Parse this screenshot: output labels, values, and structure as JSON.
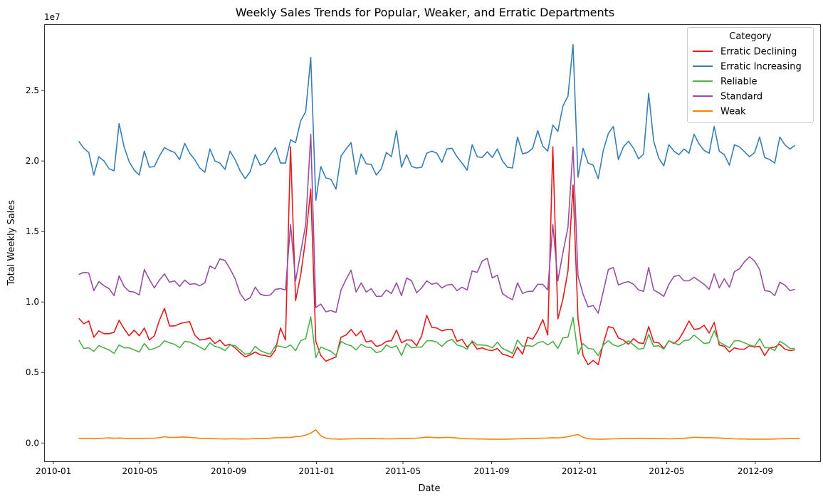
{
  "chart_data": {
    "type": "line",
    "title": "Weekly Sales Trends for Popular, Weaker, and Erratic Departments",
    "xlabel": "Date",
    "ylabel": "Total Weekly Sales",
    "y_offset_text": "1e7",
    "xlim": [
      "2009-12-19",
      "2012-11-30"
    ],
    "ylim": [
      -1300000,
      29700000
    ],
    "x_ticks": [
      {
        "date": "2010-01-01",
        "label": "2010-01"
      },
      {
        "date": "2010-05-01",
        "label": "2010-05"
      },
      {
        "date": "2010-09-01",
        "label": "2010-09"
      },
      {
        "date": "2011-01-01",
        "label": "2011-01"
      },
      {
        "date": "2011-05-01",
        "label": "2011-05"
      },
      {
        "date": "2011-09-01",
        "label": "2011-09"
      },
      {
        "date": "2012-01-01",
        "label": "2012-01"
      },
      {
        "date": "2012-05-01",
        "label": "2012-05"
      },
      {
        "date": "2012-09-01",
        "label": "2012-09"
      }
    ],
    "y_ticks": [
      {
        "value": 0,
        "label": "0.0"
      },
      {
        "value": 5000000,
        "label": "0.5"
      },
      {
        "value": 10000000,
        "label": "1.0"
      },
      {
        "value": 15000000,
        "label": "1.5"
      },
      {
        "value": 20000000,
        "label": "2.0"
      },
      {
        "value": 25000000,
        "label": "2.5"
      }
    ],
    "grid": false,
    "legend": {
      "title": "Category",
      "placement": "top-right"
    },
    "x_start": "2010-02-05",
    "x_step_days": 7,
    "series": [
      {
        "name": "Erratic Declining",
        "color": "#e41a1c",
        "values": [
          8.85,
          8.45,
          8.65,
          7.5,
          7.95,
          7.75,
          7.75,
          7.85,
          8.7,
          8.1,
          7.6,
          8.0,
          7.6,
          8.15,
          7.3,
          7.6,
          8.7,
          9.55,
          8.3,
          8.3,
          8.45,
          8.55,
          8.6,
          7.65,
          7.3,
          7.35,
          7.45,
          7.05,
          7.3,
          6.9,
          7.0,
          6.75,
          6.4,
          6.1,
          6.25,
          6.45,
          6.25,
          6.2,
          6.1,
          6.6,
          8.15,
          7.3,
          21.0,
          10.1,
          11.9,
          14.5,
          18.0,
          7.2,
          6.2,
          5.8,
          5.95,
          6.1,
          7.5,
          7.65,
          8.05,
          7.6,
          7.95,
          7.15,
          7.25,
          6.85,
          6.95,
          7.2,
          7.25,
          8.0,
          7.1,
          7.3,
          7.3,
          6.9,
          7.6,
          9.05,
          8.2,
          8.15,
          7.95,
          8.05,
          8.05,
          7.2,
          7.35,
          6.8,
          7.15,
          6.65,
          6.75,
          6.6,
          6.55,
          6.7,
          6.3,
          6.2,
          6.05,
          6.8,
          6.3,
          7.5,
          7.35,
          7.95,
          8.75,
          7.65,
          21.0,
          8.8,
          10.2,
          12.2,
          18.3,
          8.8,
          6.2,
          5.55,
          5.85,
          5.55,
          7.05,
          8.25,
          8.15,
          7.45,
          7.3,
          7.0,
          7.4,
          7.1,
          7.05,
          8.25,
          7.15,
          7.1,
          6.7,
          7.25,
          7.05,
          7.35,
          7.95,
          8.65,
          8.05,
          8.1,
          8.35,
          7.8,
          8.55,
          6.95,
          6.85,
          6.45,
          6.75,
          6.65,
          6.65,
          6.9,
          6.8,
          6.85,
          6.2,
          6.75,
          6.8,
          7.0,
          6.65,
          6.55,
          6.6
        ]
      },
      {
        "name": "Erratic Increasing",
        "color": "#377eb8",
        "values": [
          21.4,
          20.9,
          20.6,
          19.0,
          20.3,
          20.0,
          19.45,
          19.3,
          22.65,
          21.0,
          19.95,
          19.35,
          19.0,
          20.7,
          19.55,
          19.6,
          20.35,
          20.95,
          20.75,
          20.6,
          20.1,
          21.25,
          20.55,
          20.1,
          19.5,
          19.2,
          20.85,
          20.0,
          19.85,
          19.4,
          20.7,
          20.1,
          19.3,
          18.75,
          19.25,
          20.45,
          19.7,
          19.85,
          20.45,
          20.95,
          19.85,
          19.85,
          21.5,
          21.3,
          22.85,
          23.5,
          27.35,
          17.2,
          19.6,
          18.8,
          18.7,
          18.0,
          20.35,
          20.85,
          21.3,
          19.05,
          20.5,
          19.8,
          19.75,
          19.0,
          19.45,
          20.6,
          20.3,
          22.15,
          19.55,
          20.45,
          19.6,
          19.5,
          19.55,
          20.55,
          20.7,
          20.55,
          19.9,
          20.85,
          20.9,
          20.3,
          19.85,
          19.35,
          21.15,
          20.3,
          20.25,
          20.65,
          20.25,
          20.85,
          20.0,
          19.55,
          19.5,
          21.7,
          20.5,
          20.6,
          20.9,
          22.15,
          21.05,
          20.7,
          22.55,
          22.1,
          23.9,
          24.6,
          28.25,
          18.85,
          20.9,
          19.85,
          19.7,
          18.75,
          20.75,
          21.95,
          22.45,
          20.1,
          21.0,
          21.4,
          20.9,
          20.15,
          20.5,
          24.8,
          21.4,
          20.2,
          19.65,
          21.15,
          20.7,
          20.45,
          20.85,
          20.55,
          21.9,
          21.2,
          20.75,
          20.55,
          22.45,
          20.7,
          20.45,
          19.7,
          21.15,
          21.0,
          20.65,
          20.3,
          20.6,
          21.7,
          20.25,
          20.1,
          19.85,
          21.7,
          21.15,
          20.85,
          21.1
        ]
      },
      {
        "name": "Reliable",
        "color": "#4daf4a",
        "values": [
          7.3,
          6.7,
          6.75,
          6.5,
          6.9,
          6.75,
          6.6,
          6.35,
          6.95,
          6.75,
          6.75,
          6.6,
          6.45,
          7.05,
          6.6,
          6.7,
          6.85,
          7.25,
          7.1,
          7.0,
          6.75,
          7.2,
          7.15,
          7.0,
          6.8,
          6.6,
          7.1,
          6.85,
          6.75,
          6.55,
          6.95,
          6.9,
          6.6,
          6.3,
          6.35,
          6.85,
          6.55,
          6.4,
          6.3,
          6.9,
          6.85,
          6.75,
          6.95,
          6.55,
          7.25,
          7.4,
          8.95,
          6.05,
          6.8,
          6.65,
          6.5,
          6.2,
          7.2,
          7.0,
          6.9,
          6.6,
          7.0,
          6.8,
          6.75,
          6.4,
          6.5,
          6.95,
          6.75,
          6.9,
          6.2,
          7.05,
          6.75,
          6.8,
          6.8,
          7.25,
          7.25,
          7.15,
          6.85,
          7.2,
          7.35,
          6.95,
          6.85,
          6.65,
          7.25,
          6.95,
          6.95,
          6.9,
          6.75,
          7.15,
          6.7,
          6.55,
          6.35,
          7.3,
          6.85,
          6.9,
          6.85,
          7.1,
          7.2,
          6.95,
          7.2,
          6.7,
          7.45,
          7.5,
          8.9,
          6.3,
          7.05,
          6.7,
          6.65,
          6.2,
          6.95,
          7.25,
          6.95,
          6.85,
          7.0,
          7.25,
          6.95,
          6.65,
          6.7,
          7.7,
          6.85,
          6.9,
          6.65,
          7.25,
          7.1,
          6.95,
          7.25,
          7.3,
          7.65,
          7.35,
          7.05,
          7.1,
          7.95,
          7.15,
          6.95,
          6.75,
          7.25,
          7.25,
          7.1,
          6.95,
          6.85,
          7.4,
          6.75,
          6.75,
          6.55,
          7.2,
          7.0,
          6.7,
          6.7
        ]
      },
      {
        "name": "Standard",
        "color": "#984ea3",
        "values": [
          11.95,
          12.1,
          12.05,
          10.8,
          11.45,
          11.15,
          10.95,
          10.45,
          11.85,
          11.1,
          10.75,
          10.7,
          10.5,
          12.3,
          11.6,
          11.0,
          11.55,
          12.0,
          11.4,
          11.5,
          11.1,
          11.55,
          11.25,
          11.3,
          11.15,
          11.35,
          12.55,
          12.35,
          13.05,
          12.95,
          12.35,
          11.65,
          10.6,
          10.1,
          10.3,
          11.05,
          10.55,
          10.45,
          10.5,
          10.9,
          10.95,
          10.85,
          15.5,
          11.5,
          13.5,
          15.5,
          21.9,
          9.6,
          9.85,
          9.3,
          9.4,
          9.25,
          10.85,
          11.6,
          12.25,
          10.7,
          11.35,
          10.7,
          10.95,
          10.4,
          10.4,
          10.85,
          10.6,
          11.35,
          10.45,
          11.7,
          11.5,
          10.65,
          11.0,
          11.5,
          11.25,
          11.35,
          11.0,
          11.2,
          11.25,
          10.8,
          11.05,
          10.85,
          12.2,
          12.1,
          12.9,
          13.1,
          11.7,
          11.9,
          10.6,
          10.35,
          10.15,
          11.35,
          10.6,
          10.75,
          10.75,
          11.25,
          11.25,
          10.85,
          15.5,
          11.5,
          13.5,
          15.3,
          21.0,
          11.85,
          10.55,
          9.65,
          9.75,
          9.2,
          10.75,
          12.3,
          12.45,
          11.2,
          11.35,
          11.45,
          11.25,
          10.85,
          10.75,
          12.45,
          10.85,
          10.65,
          10.4,
          11.25,
          11.8,
          11.9,
          11.5,
          11.5,
          11.75,
          11.5,
          11.25,
          10.9,
          12.0,
          11.0,
          11.65,
          11.05,
          12.15,
          12.35,
          12.85,
          13.2,
          12.9,
          12.3,
          10.8,
          10.75,
          10.45,
          11.4,
          11.2,
          10.8,
          10.9
        ]
      },
      {
        "name": "Weak",
        "color": "#ff7f00",
        "values": [
          0.32,
          0.31,
          0.33,
          0.3,
          0.32,
          0.34,
          0.36,
          0.33,
          0.35,
          0.33,
          0.32,
          0.31,
          0.32,
          0.33,
          0.33,
          0.34,
          0.37,
          0.44,
          0.39,
          0.39,
          0.41,
          0.42,
          0.39,
          0.36,
          0.33,
          0.32,
          0.31,
          0.3,
          0.29,
          0.28,
          0.29,
          0.29,
          0.28,
          0.28,
          0.29,
          0.31,
          0.31,
          0.31,
          0.34,
          0.36,
          0.37,
          0.39,
          0.38,
          0.45,
          0.47,
          0.56,
          0.7,
          0.93,
          0.5,
          0.34,
          0.29,
          0.28,
          0.27,
          0.28,
          0.29,
          0.3,
          0.3,
          0.3,
          0.31,
          0.3,
          0.3,
          0.29,
          0.29,
          0.3,
          0.31,
          0.32,
          0.33,
          0.34,
          0.37,
          0.41,
          0.39,
          0.37,
          0.38,
          0.39,
          0.38,
          0.35,
          0.32,
          0.3,
          0.29,
          0.28,
          0.28,
          0.27,
          0.27,
          0.26,
          0.27,
          0.27,
          0.28,
          0.29,
          0.3,
          0.31,
          0.32,
          0.33,
          0.34,
          0.35,
          0.37,
          0.35,
          0.39,
          0.44,
          0.52,
          0.6,
          0.4,
          0.3,
          0.28,
          0.27,
          0.27,
          0.28,
          0.29,
          0.3,
          0.31,
          0.31,
          0.32,
          0.33,
          0.32,
          0.31,
          0.32,
          0.3,
          0.3,
          0.29,
          0.3,
          0.31,
          0.33,
          0.36,
          0.4,
          0.39,
          0.37,
          0.38,
          0.36,
          0.35,
          0.33,
          0.31,
          0.29,
          0.28,
          0.28,
          0.27,
          0.27,
          0.27,
          0.27,
          0.27,
          0.28,
          0.29,
          0.3,
          0.31,
          0.32,
          0.32
        ]
      }
    ],
    "value_unit_multiplier": 1000000
  }
}
